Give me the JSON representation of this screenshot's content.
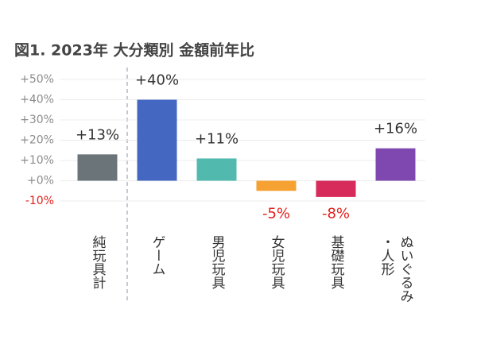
{
  "chart_data": {
    "type": "bar",
    "title": "図1.  2023年  大分類別  金額前年比",
    "categories": [
      "純玩具計",
      "ゲーム",
      "男児玩具",
      "女児玩具",
      "基礎玩具",
      "ぬいぐるみ・人形"
    ],
    "values": [
      13,
      40,
      11,
      -5,
      -8,
      16
    ],
    "value_labels": [
      "+13%",
      "+40%",
      "+11%",
      "-5%",
      "-8%",
      "+16%"
    ],
    "colors": [
      "#6b7478",
      "#4467c1",
      "#52b9ae",
      "#f5a233",
      "#d62b5b",
      "#7e48b0"
    ],
    "ylim": [
      -10,
      50
    ],
    "yticks": [
      {
        "value": -10,
        "label": "-10%"
      },
      {
        "value": 0,
        "label": "+0%"
      },
      {
        "value": 10,
        "label": "+10%"
      },
      {
        "value": 20,
        "label": "+20%"
      },
      {
        "value": 30,
        "label": "+30%"
      },
      {
        "value": 40,
        "label": "+40%"
      },
      {
        "value": 50,
        "label": "+50%"
      }
    ],
    "grid": true
  }
}
